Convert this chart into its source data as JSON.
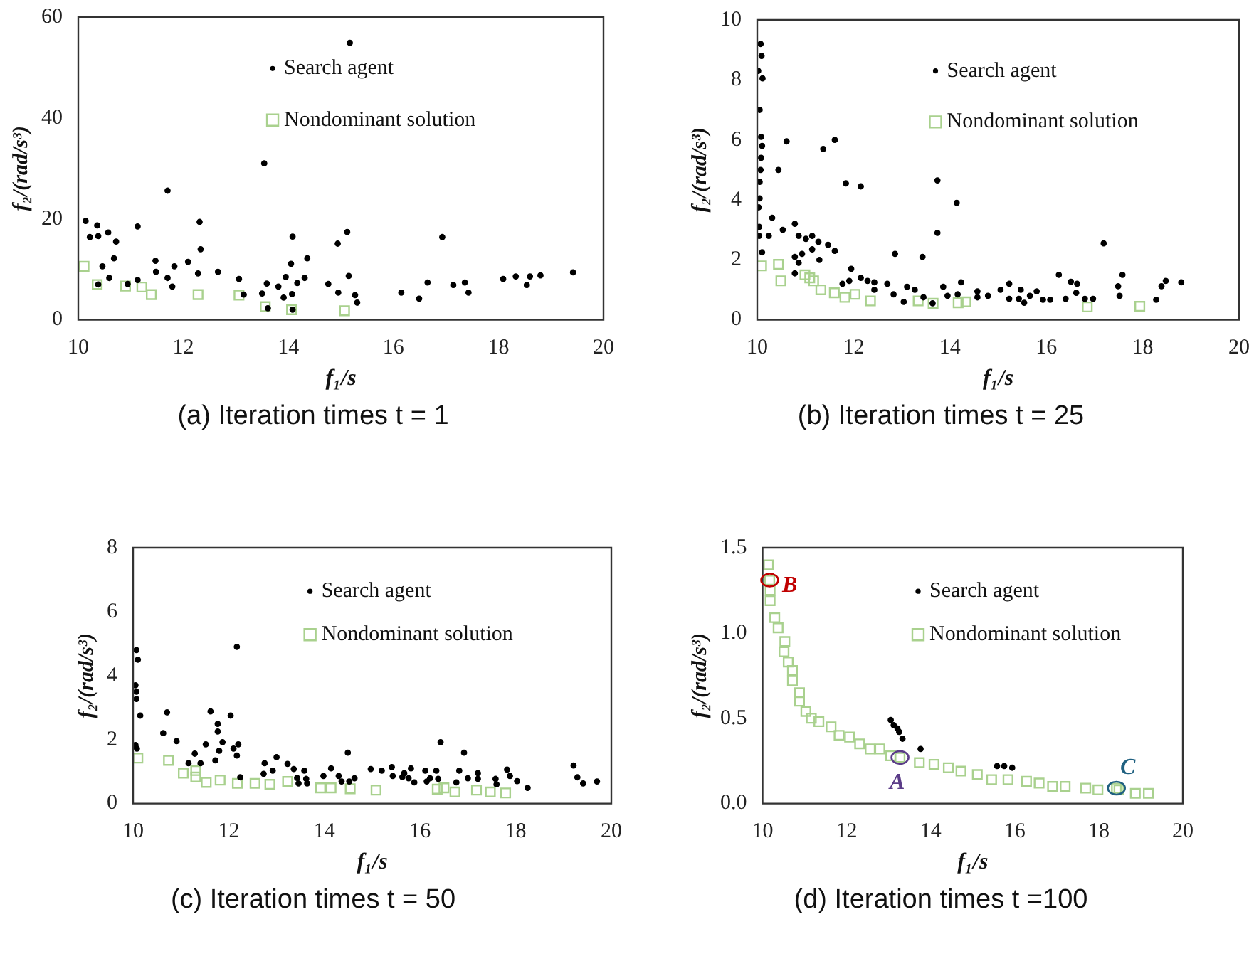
{
  "chart_data": [
    {
      "type": "scatter",
      "title": "(a) Iteration times t = 1",
      "xlabel": "f₁/s",
      "ylabel": "f₂/(rad/s³)",
      "xlim": [
        10,
        20
      ],
      "xticks": [
        10,
        12,
        14,
        16,
        18,
        20
      ],
      "ylim": [
        0,
        60
      ],
      "yticks": [
        0,
        20,
        40,
        60
      ],
      "grid": false,
      "legend": "top",
      "series": [
        {
          "name": "Search agent",
          "color": "#000000",
          "marker": "circle",
          "x": [
            10.14,
            10.22,
            10.36,
            10.38,
            10.38,
            10.46,
            10.57,
            10.59,
            10.68,
            10.72,
            10.94,
            11.13,
            11.13,
            11.47,
            11.48,
            11.7,
            11.7,
            11.79,
            11.83,
            12.09,
            12.28,
            12.31,
            12.33,
            12.66,
            13.06,
            13.15,
            13.5,
            13.54,
            13.59,
            13.61,
            13.81,
            13.91,
            13.95,
            14.05,
            14.07,
            14.08,
            14.08,
            14.17,
            14.31,
            14.36,
            14.76,
            14.94,
            14.95,
            15.12,
            15.15,
            15.17,
            15.27,
            15.31,
            16.15,
            16.49,
            16.65,
            16.93,
            17.14,
            17.36,
            17.43,
            18.09,
            18.33,
            18.54,
            18.6,
            18.8,
            19.42
          ],
          "values": [
            19.6,
            16.4,
            18.7,
            16.6,
            7,
            10.6,
            17.3,
            8.3,
            12.2,
            15.5,
            7.1,
            18.5,
            7.9,
            11.7,
            9.5,
            25.6,
            8.3,
            6.6,
            10.6,
            11.5,
            9.2,
            19.4,
            14,
            9.5,
            8.1,
            5,
            5.2,
            31,
            7.2,
            2.3,
            6.6,
            4.4,
            8.5,
            11.1,
            5.1,
            16.5,
            2,
            7.3,
            8.3,
            12.2,
            7.1,
            15.1,
            5.4,
            17.4,
            8.7,
            54.9,
            4.9,
            3.4,
            5.4,
            4.2,
            7.4,
            16.4,
            6.9,
            7.4,
            5.4,
            8.1,
            8.6,
            6.9,
            8.6,
            8.8,
            9.4
          ]
        },
        {
          "name": "Nondominant solution",
          "color": "#a9d18e",
          "marker": "square",
          "x": [
            10.11,
            10.36,
            10.9,
            11.21,
            11.39,
            12.28,
            13.06,
            13.56,
            14.06,
            15.07
          ],
          "values": [
            10.6,
            7,
            6.7,
            6.5,
            5,
            5,
            4.9,
            2.6,
            2,
            1.8
          ]
        }
      ]
    },
    {
      "type": "scatter",
      "title": "(b) Iteration times t = 25",
      "xlabel": "f₁/s",
      "ylabel": "f₂/(rad/s³)",
      "xlim": [
        10,
        20
      ],
      "xticks": [
        10,
        12,
        14,
        16,
        18,
        20
      ],
      "ylim": [
        0,
        10
      ],
      "yticks": [
        0,
        2,
        4,
        6,
        8,
        10
      ],
      "grid": false,
      "legend": "top",
      "series": [
        {
          "name": "Search agent",
          "color": "#000000",
          "marker": "circle",
          "x": [
            10.02,
            10.07,
            10.09,
            10.11,
            10.05,
            10.08,
            10.1,
            10.08,
            10.07,
            10.05,
            10.05,
            10.03,
            10.04,
            10.04,
            10.1,
            10.24,
            10.31,
            10.44,
            10.53,
            10.61,
            10.78,
            10.78,
            10.78,
            10.86,
            10.86,
            10.93,
            11.01,
            11.14,
            11.14,
            11.27,
            11.29,
            11.37,
            11.47,
            11.61,
            11.61,
            11.77,
            11.84,
            11.91,
            11.95,
            12.15,
            12.15,
            12.29,
            12.43,
            12.43,
            12.7,
            12.83,
            12.86,
            13.04,
            13.11,
            13.27,
            13.43,
            13.45,
            13.64,
            13.74,
            13.74,
            13.86,
            13.95,
            14.14,
            14.16,
            14.23,
            14.57,
            14.57,
            14.79,
            15.05,
            15.23,
            15.23,
            15.43,
            15.47,
            15.54,
            15.66,
            15.8,
            15.93,
            16.08,
            16.26,
            16.4,
            16.51,
            16.64,
            16.62,
            16.8,
            16.97,
            17.19,
            17.49,
            17.52,
            17.58,
            18.28,
            18.39,
            18.48,
            18.8
          ],
          "values": [
            8.3,
            9.2,
            8.8,
            8.05,
            7,
            6.1,
            5.8,
            5.4,
            5,
            4.6,
            4.05,
            3.75,
            3.1,
            2.8,
            2.25,
            2.8,
            3.4,
            5,
            3,
            5.95,
            3.2,
            2.1,
            1.55,
            2.8,
            1.9,
            2.2,
            2.7,
            2.8,
            2.35,
            2.6,
            2,
            5.7,
            2.5,
            6,
            2.3,
            1.2,
            4.55,
            1.3,
            1.7,
            4.45,
            1.4,
            1.3,
            1.25,
            1,
            1.2,
            0.85,
            2.2,
            0.6,
            1.1,
            1,
            2.1,
            0.75,
            0.55,
            4.65,
            2.9,
            1.1,
            0.8,
            3.9,
            0.85,
            1.25,
            0.95,
            0.75,
            0.8,
            1,
            1.2,
            0.7,
            0.7,
            1,
            0.57,
            0.8,
            0.95,
            0.67,
            0.67,
            1.5,
            0.7,
            1.27,
            1.2,
            0.9,
            0.7,
            0.7,
            2.55,
            1.12,
            0.8,
            1.5,
            0.67,
            1.12,
            1.3,
            1.25
          ]
        },
        {
          "name": "Nondominant solution",
          "color": "#a9d18e",
          "marker": "square",
          "x": [
            10.09,
            10.44,
            10.49,
            10.99,
            11.09,
            11.17,
            11.32,
            11.6,
            11.82,
            12.03,
            12.35,
            13.34,
            13.65,
            14.17,
            14.33,
            16.85,
            17.94
          ],
          "values": [
            1.8,
            1.85,
            1.3,
            1.5,
            1.4,
            1.3,
            1,
            0.9,
            0.75,
            0.85,
            0.63,
            0.63,
            0.55,
            0.57,
            0.6,
            0.43,
            0.45
          ]
        }
      ]
    },
    {
      "type": "scatter",
      "title": "(c) Iteration times t = 50",
      "xlabel": "f₁/s",
      "ylabel": "f₂/(rad/s³)",
      "xlim": [
        10,
        20
      ],
      "xticks": [
        10,
        12,
        14,
        16,
        18,
        20
      ],
      "ylim": [
        0,
        8
      ],
      "yticks": [
        0,
        2,
        4,
        6,
        8
      ],
      "grid": false,
      "legend": "top",
      "series": [
        {
          "name": "Search agent",
          "color": "#000000",
          "marker": "circle",
          "x": [
            10.07,
            10.1,
            10.05,
            10.07,
            10.07,
            10.15,
            10.05,
            10.08,
            10.63,
            10.71,
            10.91,
            11.16,
            11.29,
            11.41,
            11.52,
            11.62,
            11.72,
            11.77,
            11.77,
            11.8,
            11.87,
            12.04,
            12.1,
            12.17,
            12.17,
            12.2,
            12.24,
            12.75,
            12.73,
            12.92,
            13,
            13.23,
            13.36,
            13.43,
            13.46,
            13.58,
            13.62,
            13.64,
            13.98,
            14.14,
            14.3,
            14.36,
            14.49,
            14.52,
            14.63,
            14.97,
            15.2,
            15.41,
            15.43,
            15.63,
            15.67,
            15.76,
            15.81,
            15.88,
            16.11,
            16.14,
            16.21,
            16.34,
            16.38,
            16.43,
            16.76,
            16.82,
            16.92,
            17,
            17.21,
            17.21,
            17.58,
            17.6,
            17.82,
            17.88,
            18.03,
            18.25,
            19.21,
            19.29,
            19.41,
            19.7
          ],
          "values": [
            4.8,
            4.5,
            3.7,
            3.5,
            3.27,
            2.75,
            1.83,
            1.72,
            2.2,
            2.85,
            1.95,
            1.26,
            1.56,
            1.26,
            1.85,
            2.88,
            1.35,
            2.49,
            2.25,
            1.65,
            1.92,
            2.75,
            1.72,
            4.9,
            1.5,
            1.85,
            0.82,
            1.26,
            0.93,
            1.03,
            1.45,
            1.24,
            1.08,
            0.8,
            0.63,
            1.03,
            0.77,
            0.63,
            0.86,
            1.1,
            0.86,
            0.69,
            1.59,
            0.69,
            0.79,
            1.08,
            1.03,
            1.14,
            0.86,
            0.83,
            0.95,
            0.79,
            1.1,
            0.66,
            1.03,
            0.69,
            0.79,
            1.03,
            0.77,
            1.92,
            0.66,
            1.03,
            1.59,
            0.79,
            0.95,
            0.77,
            0.77,
            0.6,
            1.06,
            0.86,
            0.7,
            0.49,
            1.19,
            0.82,
            0.63,
            0.69
          ]
        },
        {
          "name": "Nondominant solution",
          "color": "#a9d18e",
          "marker": "square",
          "x": [
            10.1,
            10.74,
            11.05,
            11.31,
            11.31,
            11.53,
            11.82,
            12.18,
            12.55,
            12.86,
            13.23,
            13.92,
            14.14,
            14.54,
            15.08,
            16.36,
            16.5,
            16.73,
            17.18,
            17.47,
            17.79
          ],
          "values": [
            1.42,
            1.35,
            0.95,
            1.03,
            0.83,
            0.66,
            0.73,
            0.63,
            0.63,
            0.6,
            0.69,
            0.49,
            0.49,
            0.46,
            0.42,
            0.45,
            0.49,
            0.36,
            0.42,
            0.36,
            0.33
          ]
        }
      ]
    },
    {
      "type": "scatter",
      "title": "(d) Iteration times t =100",
      "xlabel": "f₁/s",
      "ylabel": "f₂/(rad/s³)",
      "xlim": [
        10,
        20
      ],
      "xticks": [
        10,
        12,
        14,
        16,
        18,
        20
      ],
      "ylim": [
        0,
        1.5
      ],
      "yticks": [
        {
          "value": 0,
          "label": "0.0"
        },
        {
          "value": 0.5,
          "label": "0.5"
        },
        {
          "value": 1,
          "label": "1.0"
        },
        {
          "value": 1.5,
          "label": "1.5"
        }
      ],
      "grid": false,
      "legend": "top",
      "annotations": [
        {
          "text": "B",
          "x": 10.17,
          "y": 1.31
        },
        {
          "text": "A",
          "x": 13.27,
          "y": 0.27
        },
        {
          "text": "C",
          "x": 18.42,
          "y": 0.09
        }
      ],
      "series": [
        {
          "name": "Search agent",
          "color": "#000000",
          "marker": "circle",
          "x": [
            13.05,
            13.12,
            13.21,
            13.25,
            13.33,
            13.76,
            15.58,
            15.75,
            15.94
          ],
          "values": [
            0.49,
            0.46,
            0.44,
            0.42,
            0.38,
            0.32,
            0.22,
            0.22,
            0.21
          ]
        },
        {
          "name": "Nondominant solution",
          "color": "#a9d18e",
          "marker": "square",
          "x": [
            10.14,
            10.17,
            10.18,
            10.18,
            10.29,
            10.37,
            10.53,
            10.51,
            10.61,
            10.71,
            10.71,
            10.88,
            10.88,
            11.03,
            11.16,
            11.34,
            11.63,
            11.82,
            12.07,
            12.31,
            12.56,
            12.79,
            13.05,
            13.27,
            13.73,
            14.08,
            14.42,
            14.72,
            15.11,
            15.45,
            15.84,
            16.28,
            16.58,
            16.9,
            17.2,
            17.69,
            17.98,
            18.42,
            18.48,
            18.87,
            19.18
          ],
          "values": [
            1.4,
            1.31,
            1.25,
            1.19,
            1.09,
            1.03,
            0.95,
            0.89,
            0.83,
            0.78,
            0.72,
            0.65,
            0.6,
            0.54,
            0.5,
            0.48,
            0.45,
            0.4,
            0.39,
            0.35,
            0.32,
            0.32,
            0.28,
            0.27,
            0.24,
            0.23,
            0.21,
            0.19,
            0.17,
            0.14,
            0.14,
            0.13,
            0.12,
            0.1,
            0.1,
            0.09,
            0.08,
            0.09,
            0.08,
            0.06,
            0.06
          ]
        }
      ]
    }
  ]
}
